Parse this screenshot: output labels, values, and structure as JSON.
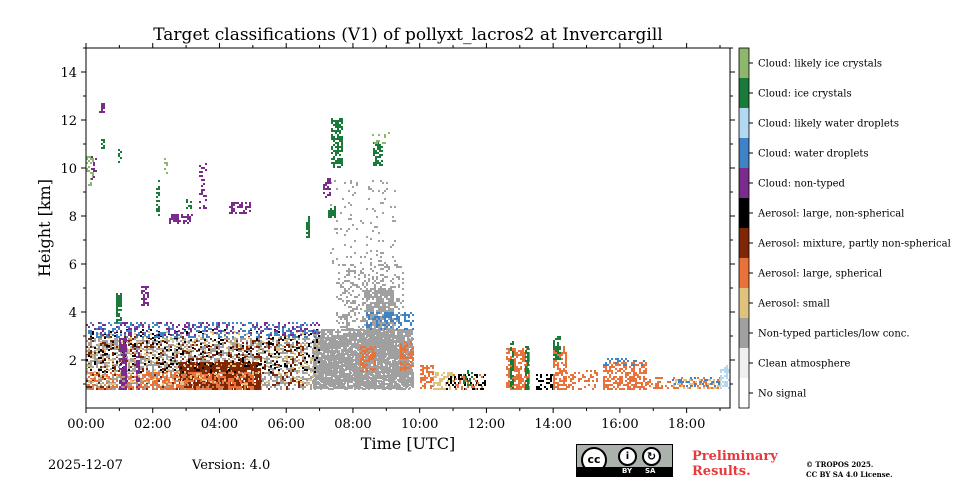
{
  "chart_data": {
    "type": "heatmap",
    "title": "Target classifications (V1) of pollyxt_lacros2 at Invercargill",
    "xlabel": "Time [UTC]",
    "ylabel": "Height [km]",
    "xlim": [
      0,
      19.3
    ],
    "ylim": [
      0,
      15
    ],
    "x_ticks": [
      0,
      2,
      4,
      6,
      8,
      10,
      12,
      14,
      16,
      18
    ],
    "x_tick_labels": [
      "00:00",
      "02:00",
      "04:00",
      "06:00",
      "08:00",
      "10:00",
      "12:00",
      "14:00",
      "16:00",
      "18:00"
    ],
    "y_ticks": [
      2,
      4,
      6,
      8,
      10,
      12,
      14
    ],
    "y_tick_labels": [
      "2",
      "4",
      "6",
      "8",
      "10",
      "12",
      "14"
    ],
    "classes": [
      {
        "id": 0,
        "label": "No signal",
        "color": "#ffffff"
      },
      {
        "id": 1,
        "label": "Clean atmosphere",
        "color": "#f0f0f0"
      },
      {
        "id": 2,
        "label": "Non-typed particles/low conc.",
        "color": "#a0a0a0"
      },
      {
        "id": 3,
        "label": "Aerosol: small",
        "color": "#dfc27d"
      },
      {
        "id": 4,
        "label": "Aerosol: large, spherical",
        "color": "#e9713a"
      },
      {
        "id": 5,
        "label": "Aerosol: mixture, partly non-spherical",
        "color": "#7f2704"
      },
      {
        "id": 6,
        "label": "Aerosol: large, non-spherical",
        "color": "#000000"
      },
      {
        "id": 7,
        "label": "Cloud: non-typed",
        "color": "#7b2b8c"
      },
      {
        "id": 8,
        "label": "Cloud: water droplets",
        "color": "#3e83c6"
      },
      {
        "id": 9,
        "label": "Cloud: likely water droplets",
        "color": "#b2d8f2"
      },
      {
        "id": 10,
        "label": "Cloud: ice crystals",
        "color": "#1a7a3a"
      },
      {
        "id": 11,
        "label": "Cloud: likely ice crystals",
        "color": "#8db86b"
      }
    ],
    "regions": [
      {
        "cls": 2,
        "t": [
          0.0,
          9.8
        ],
        "h": [
          0.8,
          2.9
        ],
        "d": 0.45
      },
      {
        "cls": 2,
        "t": [
          6.8,
          9.8
        ],
        "h": [
          0.8,
          3.3
        ],
        "d": 0.85
      },
      {
        "cls": 2,
        "t": [
          7.5,
          9.5
        ],
        "h": [
          3.0,
          6.0
        ],
        "d": 0.25
      },
      {
        "cls": 2,
        "t": [
          8.4,
          9.2
        ],
        "h": [
          2.5,
          5.0
        ],
        "d": 0.75
      },
      {
        "cls": 2,
        "t": [
          7.3,
          9.3
        ],
        "h": [
          6.0,
          9.5
        ],
        "d": 0.06
      },
      {
        "cls": 5,
        "t": [
          2.8,
          5.2
        ],
        "h": [
          0.8,
          1.9
        ],
        "d": 0.85
      },
      {
        "cls": 5,
        "t": [
          0.0,
          6.5
        ],
        "h": [
          0.8,
          3.0
        ],
        "d": 0.18
      },
      {
        "cls": 4,
        "t": [
          1.5,
          5.0
        ],
        "h": [
          0.8,
          1.5
        ],
        "d": 0.55
      },
      {
        "cls": 4,
        "t": [
          0.0,
          1.5
        ],
        "h": [
          0.8,
          1.5
        ],
        "d": 0.35
      },
      {
        "cls": 3,
        "t": [
          0.0,
          7.0
        ],
        "h": [
          1.0,
          3.2
        ],
        "d": 0.12
      },
      {
        "cls": 6,
        "t": [
          0.0,
          7.0
        ],
        "h": [
          1.5,
          3.3
        ],
        "d": 0.1
      },
      {
        "cls": 8,
        "t": [
          0.0,
          7.0
        ],
        "h": [
          2.9,
          3.6
        ],
        "d": 0.28
      },
      {
        "cls": 7,
        "t": [
          0.0,
          7.0
        ],
        "h": [
          3.0,
          3.6
        ],
        "d": 0.18
      },
      {
        "cls": 8,
        "t": [
          8.4,
          9.8
        ],
        "h": [
          3.3,
          4.0
        ],
        "d": 0.4
      },
      {
        "cls": 4,
        "t": [
          8.2,
          8.7
        ],
        "h": [
          1.5,
          2.6
        ],
        "d": 0.6
      },
      {
        "cls": 4,
        "t": [
          9.4,
          9.8
        ],
        "h": [
          1.6,
          2.8
        ],
        "d": 0.5
      },
      {
        "cls": 7,
        "t": [
          1.0,
          1.2
        ],
        "h": [
          0.8,
          2.9
        ],
        "d": 0.7
      },
      {
        "cls": 7,
        "t": [
          1.5,
          1.6
        ],
        "h": [
          0.8,
          2.6
        ],
        "d": 0.6
      },
      {
        "cls": 10,
        "t": [
          0.9,
          1.05
        ],
        "h": [
          3.5,
          4.8
        ],
        "d": 0.65
      },
      {
        "cls": 7,
        "t": [
          1.65,
          1.85
        ],
        "h": [
          4.3,
          5.1
        ],
        "d": 0.55
      },
      {
        "cls": 11,
        "t": [
          0.0,
          0.2
        ],
        "h": [
          9.3,
          10.5
        ],
        "d": 0.35
      },
      {
        "cls": 7,
        "t": [
          0.15,
          0.3
        ],
        "h": [
          9.5,
          10.5
        ],
        "d": 0.3
      },
      {
        "cls": 7,
        "t": [
          0.4,
          0.55
        ],
        "h": [
          12.3,
          12.7
        ],
        "d": 0.45
      },
      {
        "cls": 10,
        "t": [
          0.45,
          0.55
        ],
        "h": [
          10.8,
          11.3
        ],
        "d": 0.5
      },
      {
        "cls": 10,
        "t": [
          0.95,
          1.05
        ],
        "h": [
          10.2,
          10.8
        ],
        "d": 0.45
      },
      {
        "cls": 10,
        "t": [
          2.1,
          2.2
        ],
        "h": [
          8.0,
          9.5
        ],
        "d": 0.5
      },
      {
        "cls": 11,
        "t": [
          2.35,
          2.45
        ],
        "h": [
          9.8,
          10.5
        ],
        "d": 0.45
      },
      {
        "cls": 7,
        "t": [
          2.5,
          3.2
        ],
        "h": [
          7.7,
          8.1
        ],
        "d": 0.55
      },
      {
        "cls": 10,
        "t": [
          3.0,
          3.15
        ],
        "h": [
          8.3,
          8.7
        ],
        "d": 0.45
      },
      {
        "cls": 7,
        "t": [
          3.4,
          3.6
        ],
        "h": [
          8.3,
          10.3
        ],
        "d": 0.3
      },
      {
        "cls": 7,
        "t": [
          4.3,
          4.9
        ],
        "h": [
          8.1,
          8.6
        ],
        "d": 0.45
      },
      {
        "cls": 10,
        "t": [
          6.6,
          6.7
        ],
        "h": [
          7.0,
          8.0
        ],
        "d": 0.55
      },
      {
        "cls": 10,
        "t": [
          7.25,
          7.45
        ],
        "h": [
          7.9,
          8.4
        ],
        "d": 0.75
      },
      {
        "cls": 10,
        "t": [
          7.35,
          7.7
        ],
        "h": [
          10.0,
          12.1
        ],
        "d": 0.6
      },
      {
        "cls": 10,
        "t": [
          8.6,
          8.9
        ],
        "h": [
          10.1,
          11.1
        ],
        "d": 0.7
      },
      {
        "cls": 11,
        "t": [
          8.5,
          9.1
        ],
        "h": [
          11.0,
          11.5
        ],
        "d": 0.15
      },
      {
        "cls": 7,
        "t": [
          7.1,
          7.3
        ],
        "h": [
          8.8,
          9.6
        ],
        "d": 0.4
      },
      {
        "cls": 4,
        "t": [
          10.0,
          10.4
        ],
        "h": [
          0.8,
          1.8
        ],
        "d": 0.65
      },
      {
        "cls": 3,
        "t": [
          10.4,
          11.0
        ],
        "h": [
          0.8,
          1.5
        ],
        "d": 0.5
      },
      {
        "cls": 6,
        "t": [
          10.8,
          12.0
        ],
        "h": [
          0.8,
          1.4
        ],
        "d": 0.35
      },
      {
        "cls": 4,
        "t": [
          11.0,
          12.0
        ],
        "h": [
          0.8,
          1.4
        ],
        "d": 0.25
      },
      {
        "cls": 10,
        "t": [
          11.3,
          11.6
        ],
        "h": [
          0.9,
          1.6
        ],
        "d": 0.4
      },
      {
        "cls": 4,
        "t": [
          12.6,
          13.3
        ],
        "h": [
          0.8,
          2.5
        ],
        "d": 0.6
      },
      {
        "cls": 10,
        "t": [
          12.7,
          12.8
        ],
        "h": [
          0.8,
          2.8
        ],
        "d": 0.7
      },
      {
        "cls": 10,
        "t": [
          13.15,
          13.25
        ],
        "h": [
          0.8,
          2.6
        ],
        "d": 0.7
      },
      {
        "cls": 6,
        "t": [
          13.5,
          14.0
        ],
        "h": [
          0.8,
          1.4
        ],
        "d": 0.35
      },
      {
        "cls": 4,
        "t": [
          14.0,
          14.4
        ],
        "h": [
          0.8,
          2.6
        ],
        "d": 0.6
      },
      {
        "cls": 10,
        "t": [
          14.0,
          14.25
        ],
        "h": [
          2.0,
          3.0
        ],
        "d": 0.7
      },
      {
        "cls": 4,
        "t": [
          14.4,
          15.3
        ],
        "h": [
          0.8,
          1.6
        ],
        "d": 0.35
      },
      {
        "cls": 4,
        "t": [
          15.5,
          16.8
        ],
        "h": [
          0.8,
          1.9
        ],
        "d": 0.6
      },
      {
        "cls": 8,
        "t": [
          15.5,
          16.8
        ],
        "h": [
          1.8,
          2.1
        ],
        "d": 0.35
      },
      {
        "cls": 4,
        "t": [
          16.8,
          19.0
        ],
        "h": [
          0.8,
          1.3
        ],
        "d": 0.3
      },
      {
        "cls": 3,
        "t": [
          17.6,
          19.0
        ],
        "h": [
          0.8,
          1.2
        ],
        "d": 0.3
      },
      {
        "cls": 9,
        "t": [
          19.0,
          19.3
        ],
        "h": [
          0.8,
          1.8
        ],
        "d": 0.5
      },
      {
        "cls": 8,
        "t": [
          17.5,
          19.0
        ],
        "h": [
          0.9,
          1.3
        ],
        "d": 0.15
      }
    ]
  },
  "footer": {
    "date": "2025-12-07",
    "version": "Version: 4.0",
    "preliminary": "Preliminary Results.",
    "copyright_line1": "© TROPOS 2025.",
    "copyright_line2": "CC BY SA 4.0 License.",
    "cc_label": "cc",
    "cc_by_label": "BY",
    "cc_sa_label": "SA",
    "by_symbol": "i",
    "sa_symbol": "↻"
  }
}
